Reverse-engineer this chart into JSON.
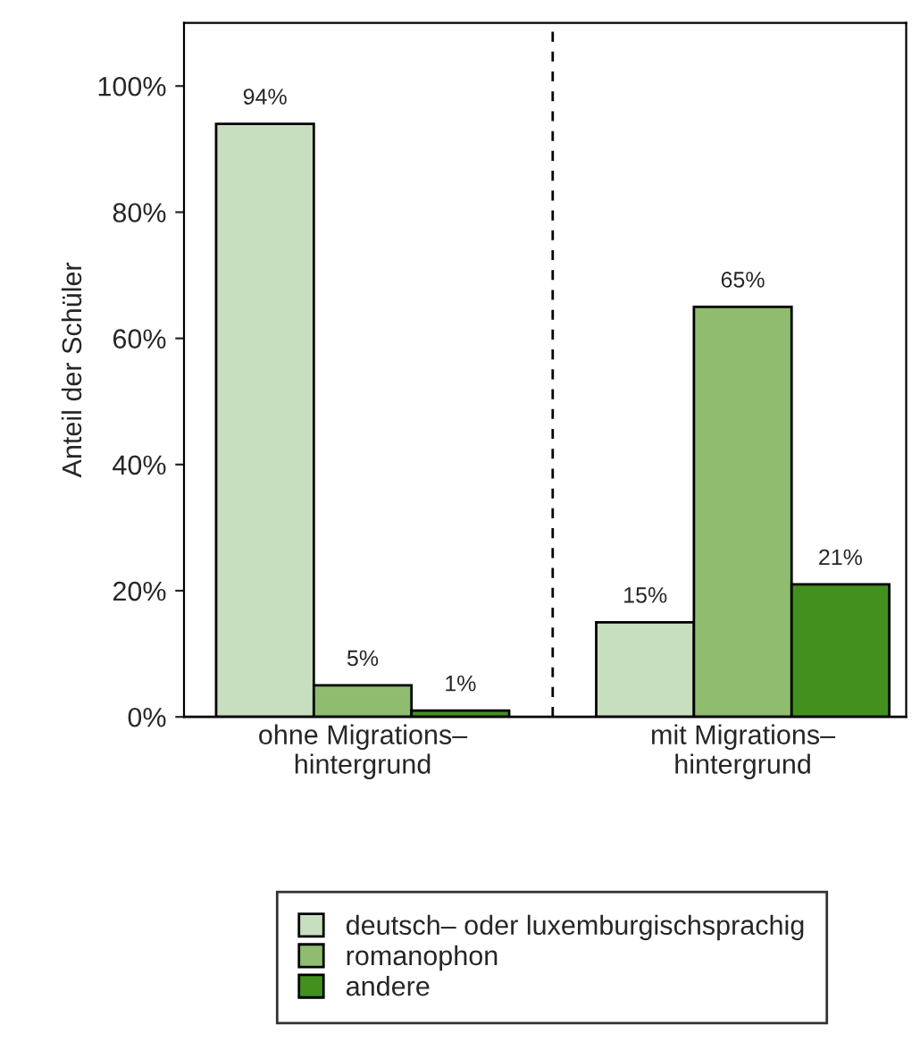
{
  "chart_data": {
    "type": "bar",
    "ylabel": "Anteil der Schüler",
    "categories": [
      "ohne Migrations–\nhintergrund",
      "mit Migrations–\nhintergrund"
    ],
    "series": [
      {
        "name": "deutsch– oder luxemburgischsprachig",
        "color": "#c8dfbf",
        "values": [
          94,
          15
        ],
        "value_labels": [
          "94%",
          "15%"
        ]
      },
      {
        "name": "romanophon",
        "color": "#8fbc6f",
        "values": [
          5,
          65
        ],
        "value_labels": [
          "5%",
          "65%"
        ]
      },
      {
        "name": "andere",
        "color": "#43901f",
        "values": [
          1,
          21
        ],
        "value_labels": [
          "1%",
          "21%"
        ]
      }
    ],
    "ylim": [
      0,
      110
    ],
    "yticks": [
      {
        "value": 0,
        "label": "0%"
      },
      {
        "value": 20,
        "label": "20%"
      },
      {
        "value": 40,
        "label": "40%"
      },
      {
        "value": 60,
        "label": "60%"
      },
      {
        "value": 80,
        "label": "80%"
      },
      {
        "value": 100,
        "label": "100%"
      }
    ],
    "grid": false,
    "legend": "bottom"
  }
}
